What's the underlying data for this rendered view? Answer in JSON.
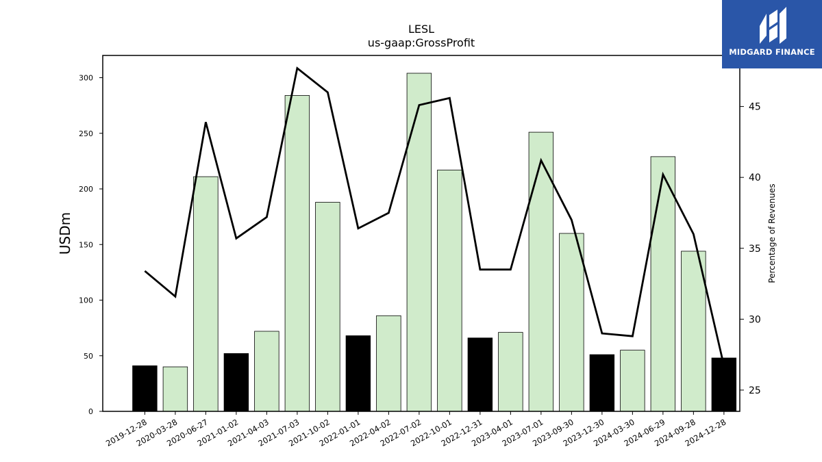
{
  "logo": {
    "text": "MIDGARD FINANCE",
    "bg_color": "#2a56a8"
  },
  "chart_data": {
    "type": "bar",
    "title": "LESL",
    "subtitle": "us-gaap:GrossProfit",
    "ylabel": "USDm",
    "y2label": "Percentage of Revenues",
    "ylim": [
      0,
      320
    ],
    "y2lim": [
      23.5,
      48.6
    ],
    "yticks": [
      0,
      50,
      100,
      150,
      200,
      250,
      300
    ],
    "y2ticks": [
      25,
      30,
      35,
      40,
      45
    ],
    "categories": [
      "2019-12-28",
      "2020-03-28",
      "2020-06-27",
      "2021-01-02",
      "2021-04-03",
      "2021-07-03",
      "2021-10-02",
      "2022-01-01",
      "2022-04-02",
      "2022-07-02",
      "2022-10-01",
      "2022-12-31",
      "2023-04-01",
      "2023-07-01",
      "2023-09-30",
      "2023-12-30",
      "2024-03-30",
      "2024-06-29",
      "2024-09-28",
      "2024-12-28"
    ],
    "series": [
      {
        "type": "bar",
        "values": [
          41,
          40,
          211,
          52,
          72,
          284,
          188,
          68,
          86,
          304,
          217,
          66,
          71,
          251,
          160,
          51,
          55,
          229,
          144,
          48
        ],
        "highlight": [
          true,
          false,
          false,
          true,
          false,
          false,
          false,
          true,
          false,
          false,
          false,
          true,
          false,
          false,
          false,
          true,
          false,
          false,
          false,
          true
        ],
        "color": "#d0ebcb",
        "highlight_color": "#000000"
      },
      {
        "type": "line",
        "axis": "right",
        "values": [
          33.4,
          31.6,
          43.9,
          35.7,
          37.2,
          47.7,
          46.0,
          36.4,
          37.5,
          45.1,
          45.6,
          33.5,
          33.5,
          41.2,
          37.0,
          29.0,
          28.8,
          40.2,
          36.0,
          26.7
        ],
        "color": "#000000"
      }
    ],
    "grid": false
  }
}
